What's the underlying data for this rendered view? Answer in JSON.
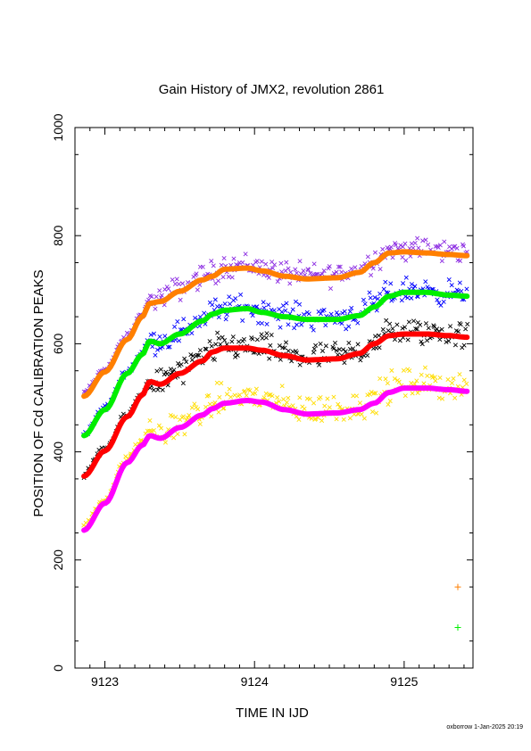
{
  "chart_data": {
    "type": "scatter",
    "title": "Gain History of JMX2, revolution 2861",
    "xlabel": "TIME IN IJD",
    "ylabel": "POSITION OF Cd CALIBRATION PEAKS",
    "xlim": [
      9122.8,
      9125.46
    ],
    "ylim": [
      0,
      1000
    ],
    "xticks": [
      9123,
      9124,
      9125
    ],
    "yticks": [
      0,
      200,
      400,
      600,
      800,
      1000
    ],
    "grid": false,
    "footer": "oxborrow  1-Jan-2025 20:19",
    "x_knots": [
      9122.86,
      9123.0,
      9123.15,
      9123.25,
      9123.3,
      9123.37,
      9123.5,
      9123.65,
      9123.72,
      9123.8,
      9123.95,
      9124.05,
      9124.2,
      9124.35,
      9124.55,
      9124.7,
      9124.8,
      9124.9,
      9125.0,
      9125.15,
      9125.3,
      9125.42
    ],
    "scatter_range": [
      9122.86,
      9125.42
    ],
    "series": [
      {
        "color": "#ff7f00",
        "scatter_color": "#8b2be2",
        "fit_values": [
          503,
          548,
          608,
          650,
          675,
          678,
          697,
          718,
          725,
          738,
          740,
          735,
          725,
          720,
          722,
          732,
          750,
          768,
          770,
          768,
          765,
          763
        ],
        "scatter_offset": 6,
        "scatter_spread": 32
      },
      {
        "color": "#00ee00",
        "scatter_color": "#0000ff",
        "fit_values": [
          430,
          478,
          545,
          580,
          605,
          600,
          618,
          642,
          655,
          662,
          665,
          658,
          650,
          645,
          645,
          652,
          668,
          688,
          695,
          695,
          690,
          688
        ],
        "scatter_offset": 4,
        "scatter_spread": 34
      },
      {
        "color": "#ff0000",
        "scatter_color": "#000000",
        "fit_values": [
          355,
          402,
          465,
          505,
          530,
          525,
          545,
          568,
          585,
          592,
          592,
          588,
          578,
          570,
          572,
          582,
          600,
          615,
          618,
          618,
          615,
          612
        ],
        "scatter_offset": 4,
        "scatter_spread": 38
      },
      {
        "color": "#ff00ff",
        "scatter_color": "#ffdd00",
        "fit_values": [
          255,
          305,
          380,
          412,
          430,
          425,
          445,
          468,
          480,
          490,
          495,
          492,
          478,
          470,
          472,
          478,
          490,
          510,
          518,
          518,
          515,
          512
        ],
        "scatter_offset": 8,
        "scatter_spread": 42
      }
    ],
    "legend_marks": [
      {
        "color": "#ff7f00",
        "y": 150
      },
      {
        "color": "#00ee00",
        "y": 75
      }
    ]
  }
}
